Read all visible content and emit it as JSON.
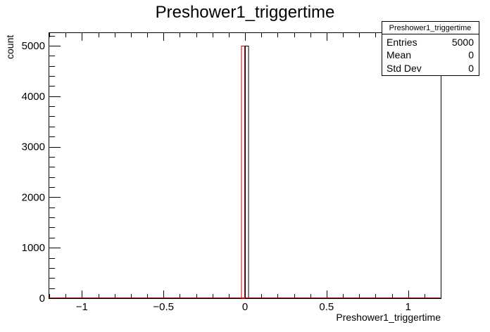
{
  "chart_data": {
    "type": "bar",
    "title": "Preshower1_triggertime",
    "xlabel": "Preshower1_triggertime",
    "ylabel": "count",
    "xlim": [
      -1.2,
      1.2
    ],
    "ylim": [
      0,
      5250
    ],
    "x_major_ticks": [
      -1,
      -0.5,
      0,
      0.5,
      1
    ],
    "x_tick_labels": [
      "−1",
      "−0.5",
      "0",
      "0.5",
      "1"
    ],
    "y_major_ticks": [
      0,
      1000,
      2000,
      3000,
      4000,
      5000
    ],
    "y_tick_labels": [
      "0",
      "1000",
      "2000",
      "3000",
      "4000",
      "5000"
    ],
    "bins": [
      {
        "low": -0.024,
        "high": 0.0,
        "value": 5000,
        "color": "#cc0000"
      },
      {
        "low": 0.0,
        "high": 0.024,
        "value": 5000,
        "color": "#000000"
      }
    ],
    "baseline_color": "#cc0000",
    "stats_box": {
      "title": "Preshower1_triggertime",
      "rows": [
        {
          "label": "Entries",
          "value": "5000"
        },
        {
          "label": "Mean",
          "value": "0"
        },
        {
          "label": "Std Dev",
          "value": "0"
        }
      ]
    }
  }
}
